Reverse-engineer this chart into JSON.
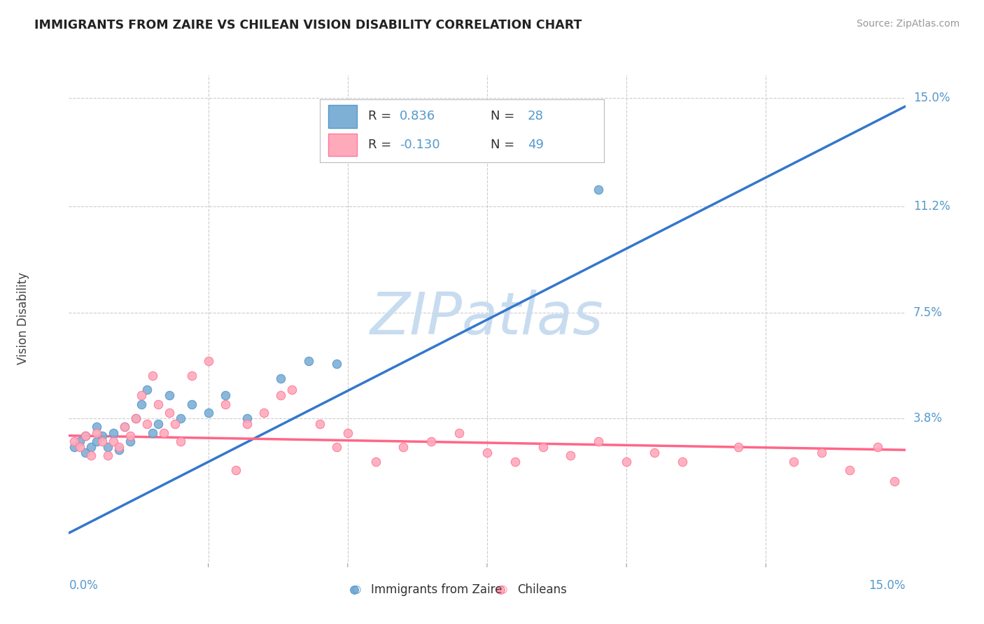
{
  "title": "IMMIGRANTS FROM ZAIRE VS CHILEAN VISION DISABILITY CORRELATION CHART",
  "source": "Source: ZipAtlas.com",
  "ylabel": "Vision Disability",
  "xlim": [
    0.0,
    0.15
  ],
  "ylim": [
    -0.012,
    0.158
  ],
  "yticks": [
    0.0,
    0.038,
    0.075,
    0.112,
    0.15
  ],
  "ytick_labels": [
    "",
    "3.8%",
    "7.5%",
    "11.2%",
    "15.0%"
  ],
  "xtick_labels": [
    "0.0%",
    "15.0%"
  ],
  "blue_color": "#7EB0D5",
  "blue_edge": "#5599CC",
  "pink_color": "#FFAABB",
  "pink_edge": "#FF7799",
  "trend_blue_color": "#3377CC",
  "trend_pink_color": "#FF6688",
  "watermark": "ZIPatlas",
  "watermark_color": "#C8DCF0",
  "grid_color": "#CCCCCC",
  "tick_color": "#5599CC",
  "blue_scatter_x": [
    0.001,
    0.002,
    0.003,
    0.003,
    0.004,
    0.005,
    0.005,
    0.006,
    0.007,
    0.008,
    0.009,
    0.01,
    0.011,
    0.012,
    0.013,
    0.014,
    0.015,
    0.016,
    0.018,
    0.02,
    0.022,
    0.025,
    0.028,
    0.032,
    0.038,
    0.043,
    0.048,
    0.095
  ],
  "blue_scatter_y": [
    0.028,
    0.03,
    0.026,
    0.032,
    0.028,
    0.03,
    0.035,
    0.032,
    0.028,
    0.033,
    0.027,
    0.035,
    0.03,
    0.038,
    0.043,
    0.048,
    0.033,
    0.036,
    0.046,
    0.038,
    0.043,
    0.04,
    0.046,
    0.038,
    0.052,
    0.058,
    0.057,
    0.118
  ],
  "pink_scatter_x": [
    0.001,
    0.002,
    0.003,
    0.004,
    0.005,
    0.006,
    0.007,
    0.008,
    0.009,
    0.01,
    0.011,
    0.012,
    0.013,
    0.014,
    0.015,
    0.016,
    0.017,
    0.018,
    0.019,
    0.02,
    0.022,
    0.025,
    0.028,
    0.03,
    0.032,
    0.035,
    0.038,
    0.04,
    0.045,
    0.048,
    0.05,
    0.055,
    0.06,
    0.065,
    0.07,
    0.075,
    0.08,
    0.085,
    0.09,
    0.095,
    0.1,
    0.105,
    0.11,
    0.12,
    0.13,
    0.135,
    0.14,
    0.145,
    0.148
  ],
  "pink_scatter_y": [
    0.03,
    0.028,
    0.032,
    0.025,
    0.033,
    0.03,
    0.025,
    0.03,
    0.028,
    0.035,
    0.032,
    0.038,
    0.046,
    0.036,
    0.053,
    0.043,
    0.033,
    0.04,
    0.036,
    0.03,
    0.053,
    0.058,
    0.043,
    0.02,
    0.036,
    0.04,
    0.046,
    0.048,
    0.036,
    0.028,
    0.033,
    0.023,
    0.028,
    0.03,
    0.033,
    0.026,
    0.023,
    0.028,
    0.025,
    0.03,
    0.023,
    0.026,
    0.023,
    0.028,
    0.023,
    0.026,
    0.02,
    0.028,
    0.016
  ],
  "blue_trend_x": [
    0.0,
    0.15
  ],
  "blue_trend_y": [
    -0.002,
    0.147
  ],
  "pink_trend_x": [
    0.0,
    0.15
  ],
  "pink_trend_y": [
    0.032,
    0.027
  ],
  "legend_blue_label": "Immigrants from Zaire",
  "legend_pink_label": "Chileans"
}
